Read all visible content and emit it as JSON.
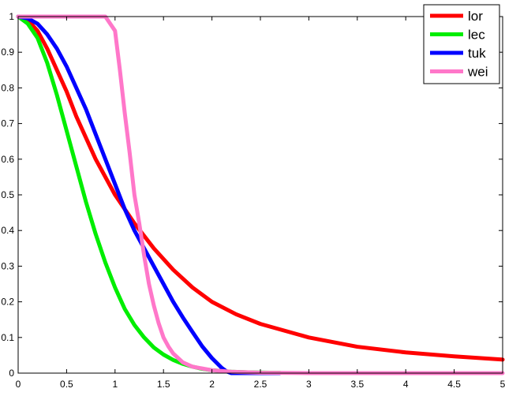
{
  "chart_data": {
    "type": "line",
    "title": "",
    "xlabel": "",
    "ylabel": "",
    "xlim": [
      0,
      5
    ],
    "ylim": [
      0,
      1
    ],
    "xticks": [
      "0",
      "0.5",
      "1",
      "1.5",
      "2",
      "2.5",
      "3",
      "3.5",
      "4",
      "4.5",
      "5"
    ],
    "yticks": [
      "0",
      "0.1",
      "0.2",
      "0.3",
      "0.4",
      "0.5",
      "0.6",
      "0.7",
      "0.8",
      "0.9",
      "1"
    ],
    "grid": false,
    "legend_position": "top-right",
    "series": [
      {
        "name": "lor",
        "color": "#ff0000",
        "x": [
          0,
          0.1,
          0.2,
          0.3,
          0.4,
          0.5,
          0.6,
          0.8,
          1.0,
          1.2,
          1.4,
          1.6,
          1.8,
          2.0,
          2.25,
          2.5,
          3.0,
          3.5,
          4.0,
          4.5,
          5.0
        ],
        "y": [
          1.0,
          0.99,
          0.96,
          0.91,
          0.85,
          0.79,
          0.72,
          0.6,
          0.5,
          0.42,
          0.35,
          0.29,
          0.24,
          0.2,
          0.165,
          0.138,
          0.1,
          0.074,
          0.058,
          0.047,
          0.038
        ]
      },
      {
        "name": "lec",
        "color": "#00ee00",
        "x": [
          0,
          0.1,
          0.2,
          0.3,
          0.4,
          0.5,
          0.6,
          0.7,
          0.8,
          0.9,
          1.0,
          1.1,
          1.2,
          1.3,
          1.4,
          1.5,
          1.6,
          1.7,
          1.8,
          1.9,
          2.0,
          2.2,
          2.4,
          2.6,
          2.7
        ],
        "y": [
          1.0,
          0.98,
          0.94,
          0.87,
          0.78,
          0.68,
          0.58,
          0.48,
          0.39,
          0.31,
          0.24,
          0.18,
          0.135,
          0.1,
          0.072,
          0.052,
          0.037,
          0.026,
          0.018,
          0.012,
          0.008,
          0.004,
          0.002,
          0.001,
          0.001
        ]
      },
      {
        "name": "tuk",
        "color": "#0000ff",
        "x": [
          0,
          0.1,
          0.2,
          0.3,
          0.4,
          0.5,
          0.6,
          0.7,
          0.8,
          0.9,
          1.0,
          1.1,
          1.2,
          1.3,
          1.4,
          1.5,
          1.6,
          1.7,
          1.8,
          1.9,
          2.0,
          2.1,
          2.15,
          2.2,
          2.7
        ],
        "y": [
          1.0,
          0.995,
          0.98,
          0.95,
          0.91,
          0.86,
          0.8,
          0.74,
          0.67,
          0.6,
          0.53,
          0.46,
          0.4,
          0.35,
          0.3,
          0.25,
          0.2,
          0.156,
          0.115,
          0.075,
          0.042,
          0.015,
          0.005,
          0.0,
          0.0
        ]
      },
      {
        "name": "wei",
        "color": "#ff77c9",
        "x": [
          0,
          0.5,
          0.9,
          1.0,
          1.05,
          1.1,
          1.15,
          1.2,
          1.25,
          1.3,
          1.35,
          1.4,
          1.45,
          1.5,
          1.55,
          1.6,
          1.7,
          1.8,
          2.0,
          2.2,
          2.5,
          3.0,
          4.0,
          5.0
        ],
        "y": [
          1.0,
          1.0,
          1.0,
          0.96,
          0.85,
          0.73,
          0.62,
          0.5,
          0.42,
          0.33,
          0.25,
          0.19,
          0.14,
          0.1,
          0.075,
          0.055,
          0.03,
          0.018,
          0.008,
          0.004,
          0.001,
          0.0,
          0.0,
          0.0
        ]
      }
    ]
  }
}
